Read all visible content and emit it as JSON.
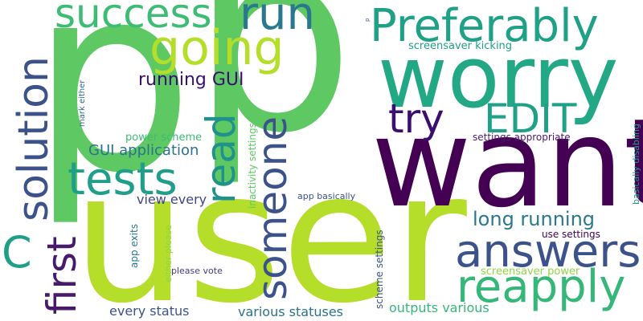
{
  "words": [
    {
      "text": "p",
      "color": "#5ec962"
    },
    {
      "text": "p",
      "color": "#5ec962"
    },
    {
      "text": "user",
      "color": "#b5de2b"
    },
    {
      "text": "want",
      "color": "#440154"
    },
    {
      "text": "worry",
      "color": "#22a884"
    },
    {
      "text": "Preferably",
      "color": "#1fa187"
    },
    {
      "text": "success",
      "color": "#3dbc74"
    },
    {
      "text": "run",
      "color": "#2a788e"
    },
    {
      "text": "going",
      "color": "#b5de2b"
    },
    {
      "text": "solution",
      "color": "#3b528b"
    },
    {
      "text": "tests",
      "color": "#1f9e89"
    },
    {
      "text": "read",
      "color": "#21918c"
    },
    {
      "text": "someone",
      "color": "#3b528b"
    },
    {
      "text": "try",
      "color": "#3b0f70"
    },
    {
      "text": "EDIT",
      "color": "#1fa187"
    },
    {
      "text": "answers",
      "color": "#3b528b"
    },
    {
      "text": "reapply",
      "color": "#35b779"
    },
    {
      "text": "first",
      "color": "#481a6c"
    },
    {
      "text": "C",
      "color": "#1f9e89"
    },
    {
      "text": "running GUI",
      "color": "#3b0f70"
    },
    {
      "text": "GUI application",
      "color": "#2c728e"
    },
    {
      "text": "long running",
      "color": "#2a788e"
    },
    {
      "text": "view every",
      "color": "#414487"
    },
    {
      "text": "every status",
      "color": "#3b528b"
    },
    {
      "text": "various statuses",
      "color": "#2c728e"
    },
    {
      "text": "outputs various",
      "color": "#35b779"
    },
    {
      "text": "screensaver kicking",
      "color": "#1f9e89"
    },
    {
      "text": "power scheme",
      "color": "#3dbc74"
    },
    {
      "text": "settings appropriate",
      "color": "#481a6c"
    },
    {
      "text": "app basically",
      "color": "#3b528b"
    },
    {
      "text": "use settings",
      "color": "#440154"
    },
    {
      "text": "screensaver power",
      "color": "#90d743"
    },
    {
      "text": "please vote",
      "color": "#443983"
    },
    {
      "text": "app exits",
      "color": "#2a788e"
    },
    {
      "text": "either please",
      "color": "#90d743"
    },
    {
      "text": "mark either",
      "color": "#31688e"
    },
    {
      "text": "inactivity settings",
      "color": "#5ec962"
    },
    {
      "text": "scheme settings",
      "color": "#3b528b"
    },
    {
      "text": "basically disabling",
      "color": "#1f9e89"
    },
    {
      "text": "p",
      "color": "#3b528b"
    }
  ]
}
